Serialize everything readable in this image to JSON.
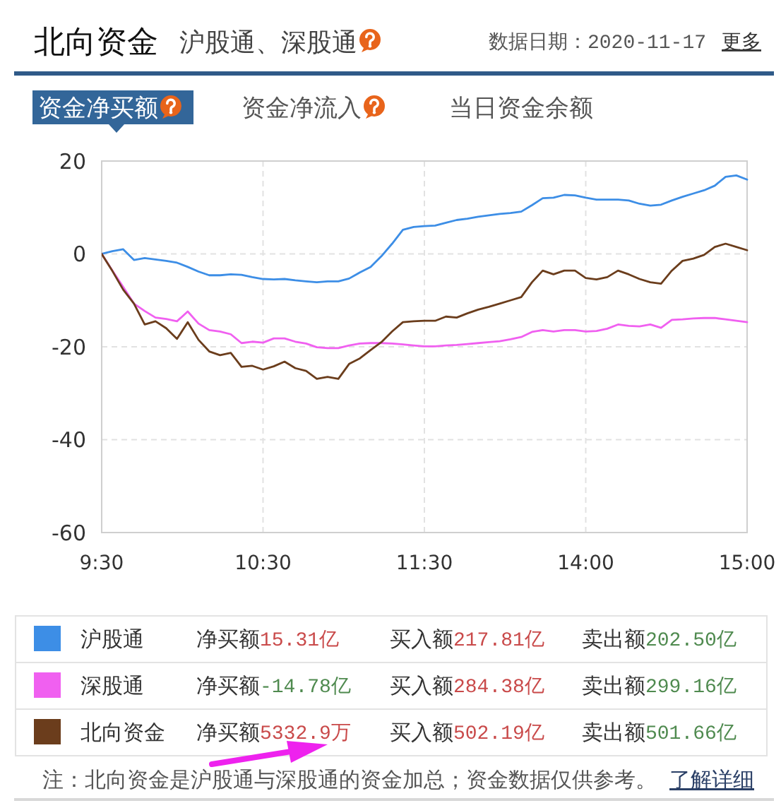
{
  "chart_data": {
    "type": "line",
    "title": "北向资金",
    "subtitle": "沪股通、深股通",
    "annotations": [
      "数据日期：2020-11-17",
      "更多",
      "资金净买额",
      "资金净流入",
      "当日资金余额",
      "净买额",
      "15.31亿",
      "买入额",
      "217.81亿",
      "卖出额",
      "202.50亿",
      "净买额",
      "-14.78亿",
      "买入额",
      "284.38亿",
      "卖出额",
      "299.16亿",
      "净买额",
      "5332.9万",
      "买入额",
      "502.19亿",
      "卖出额",
      "501.66亿",
      "注：北向资金是沪股通与深股通的资金加总；资金数据仅供参考。",
      "了解详细"
    ],
    "categories": [
      "9:30",
      null,
      null,
      null,
      null,
      null,
      null,
      null,
      null,
      null,
      null,
      null,
      null,
      null,
      null,
      "10:30",
      null,
      null,
      null,
      null,
      null,
      null,
      null,
      null,
      null,
      null,
      null,
      null,
      null,
      null,
      "11:30",
      null,
      null,
      null,
      null,
      null,
      null,
      null,
      null,
      null,
      null,
      null,
      null,
      null,
      null,
      "14:00",
      null,
      null,
      null,
      null,
      null,
      null,
      null,
      null,
      null,
      null,
      null,
      null,
      null,
      null,
      "15:00"
    ],
    "ylim": [
      -60,
      20
    ],
    "yticks": [
      -60,
      -40,
      -20,
      0,
      20
    ],
    "grid": true,
    "legend": "bottom",
    "line_style": "solid",
    "series": [
      {
        "name": "沪股通",
        "color": "#3d8ee6",
        "values": [
          0,
          0.6,
          1.0,
          -1.3,
          -0.9,
          -1.2,
          -1.5,
          -1.9,
          -2.8,
          -3.8,
          -4.6,
          -4.6,
          -4.4,
          -4.5,
          -5.0,
          -5.4,
          -5.5,
          -5.4,
          -5.7,
          -5.9,
          -6.1,
          -5.9,
          -5.9,
          -5.3,
          -4.0,
          -2.8,
          -0.5,
          2.2,
          5.2,
          5.8,
          6.0,
          6.1,
          6.7,
          7.3,
          7.6,
          8.0,
          8.3,
          8.6,
          8.8,
          9.1,
          10.5,
          12.0,
          12.1,
          12.7,
          12.6,
          12.1,
          11.7,
          11.7,
          11.7,
          11.5,
          10.8,
          10.4,
          10.6,
          11.5,
          12.3,
          13.0,
          13.7,
          14.7,
          16.6,
          16.9,
          16.0
        ]
      },
      {
        "name": "深股通",
        "color": "#f060f0",
        "values": [
          0,
          -3.6,
          -7.1,
          -10.7,
          -12.3,
          -13.7,
          -14.0,
          -14.5,
          -12.4,
          -15.0,
          -16.4,
          -16.7,
          -17.3,
          -19.2,
          -18.9,
          -19.1,
          -18.2,
          -18.2,
          -18.9,
          -19.3,
          -20.1,
          -20.3,
          -20.3,
          -19.7,
          -19.3,
          -19.2,
          -19.2,
          -19.3,
          -19.5,
          -19.7,
          -19.9,
          -19.9,
          -19.7,
          -19.6,
          -19.4,
          -19.2,
          -19.0,
          -18.8,
          -18.4,
          -17.9,
          -16.8,
          -16.4,
          -16.7,
          -16.4,
          -16.4,
          -16.7,
          -16.6,
          -16.1,
          -15.2,
          -15.5,
          -15.6,
          -15.2,
          -15.9,
          -14.2,
          -14.1,
          -13.9,
          -13.8,
          -13.8,
          -14.1,
          -14.4,
          -14.7
        ]
      },
      {
        "name": "北向资金",
        "color": "#6b3d1c",
        "values": [
          0,
          -3.7,
          -7.7,
          -10.7,
          -15.2,
          -14.5,
          -16.0,
          -18.3,
          -14.7,
          -18.5,
          -21.0,
          -21.8,
          -21.3,
          -24.3,
          -24.1,
          -24.9,
          -24.2,
          -23.2,
          -24.6,
          -25.2,
          -26.9,
          -26.5,
          -26.9,
          -23.7,
          -22.5,
          -20.7,
          -19.0,
          -16.7,
          -14.7,
          -14.5,
          -14.4,
          -14.4,
          -13.5,
          -13.7,
          -12.8,
          -12.0,
          -11.4,
          -10.7,
          -10.0,
          -9.3,
          -6.1,
          -3.6,
          -4.4,
          -3.6,
          -3.6,
          -5.2,
          -5.5,
          -5.0,
          -3.6,
          -4.4,
          -5.4,
          -6.1,
          -6.4,
          -3.6,
          -1.5,
          -1.0,
          -0.2,
          1.5,
          2.2,
          1.5,
          0.8
        ]
      }
    ]
  }
}
